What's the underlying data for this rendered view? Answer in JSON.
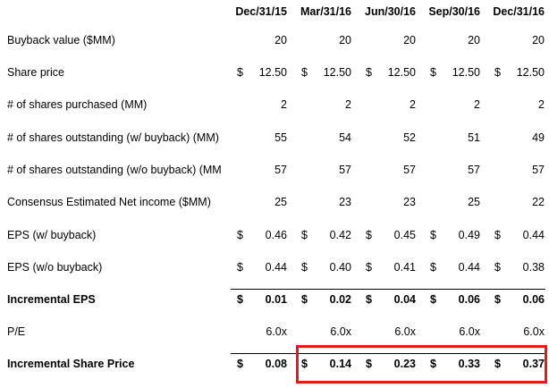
{
  "headers": [
    "Dec/31/15",
    "Mar/31/16",
    "Jun/30/16",
    "Sep/30/16",
    "Dec/31/16"
  ],
  "rows": [
    {
      "label": "Buyback value ($MM)",
      "bold": false,
      "dollar": false,
      "values": [
        "20",
        "20",
        "20",
        "20",
        "20"
      ]
    },
    {
      "label": "Share price",
      "bold": false,
      "dollar": true,
      "values": [
        "12.50",
        "12.50",
        "12.50",
        "12.50",
        "12.50"
      ]
    },
    {
      "label": "# of shares purchased (MM)",
      "bold": false,
      "dollar": false,
      "values": [
        "2",
        "2",
        "2",
        "2",
        "2"
      ]
    },
    {
      "label": "# of shares outstanding (w/ buyback) (MM)",
      "bold": false,
      "dollar": false,
      "values": [
        "55",
        "54",
        "52",
        "51",
        "49"
      ]
    },
    {
      "label": "# of shares outstanding (w/o buyback) (MM",
      "bold": false,
      "dollar": false,
      "values": [
        "57",
        "57",
        "57",
        "57",
        "57"
      ]
    },
    {
      "label": "Consensus Estimated Net income ($MM)",
      "bold": false,
      "dollar": false,
      "values": [
        "25",
        "23",
        "23",
        "25",
        "22"
      ]
    },
    {
      "label": "EPS (w/ buyback)",
      "bold": false,
      "dollar": true,
      "values": [
        "0.46",
        "0.42",
        "0.45",
        "0.49",
        "0.44"
      ]
    },
    {
      "label": "EPS (w/o buyback)",
      "bold": false,
      "dollar": true,
      "values": [
        "0.44",
        "0.40",
        "0.41",
        "0.44",
        "0.38"
      ]
    },
    {
      "label": "Incremental EPS",
      "bold": true,
      "dollar": true,
      "topline": true,
      "values": [
        "0.01",
        "0.02",
        "0.04",
        "0.06",
        "0.06"
      ]
    },
    {
      "label": "P/E",
      "bold": false,
      "dollar": false,
      "values": [
        "6.0x",
        "6.0x",
        "6.0x",
        "6.0x",
        "6.0x"
      ]
    },
    {
      "label": "Incremental Share Price",
      "bold": true,
      "dollar": true,
      "topline": true,
      "values": [
        "0.08",
        "0.14",
        "0.23",
        "0.33",
        "0.37"
      ]
    }
  ],
  "currency_symbol": "$",
  "highlight_color": "#e01b24"
}
